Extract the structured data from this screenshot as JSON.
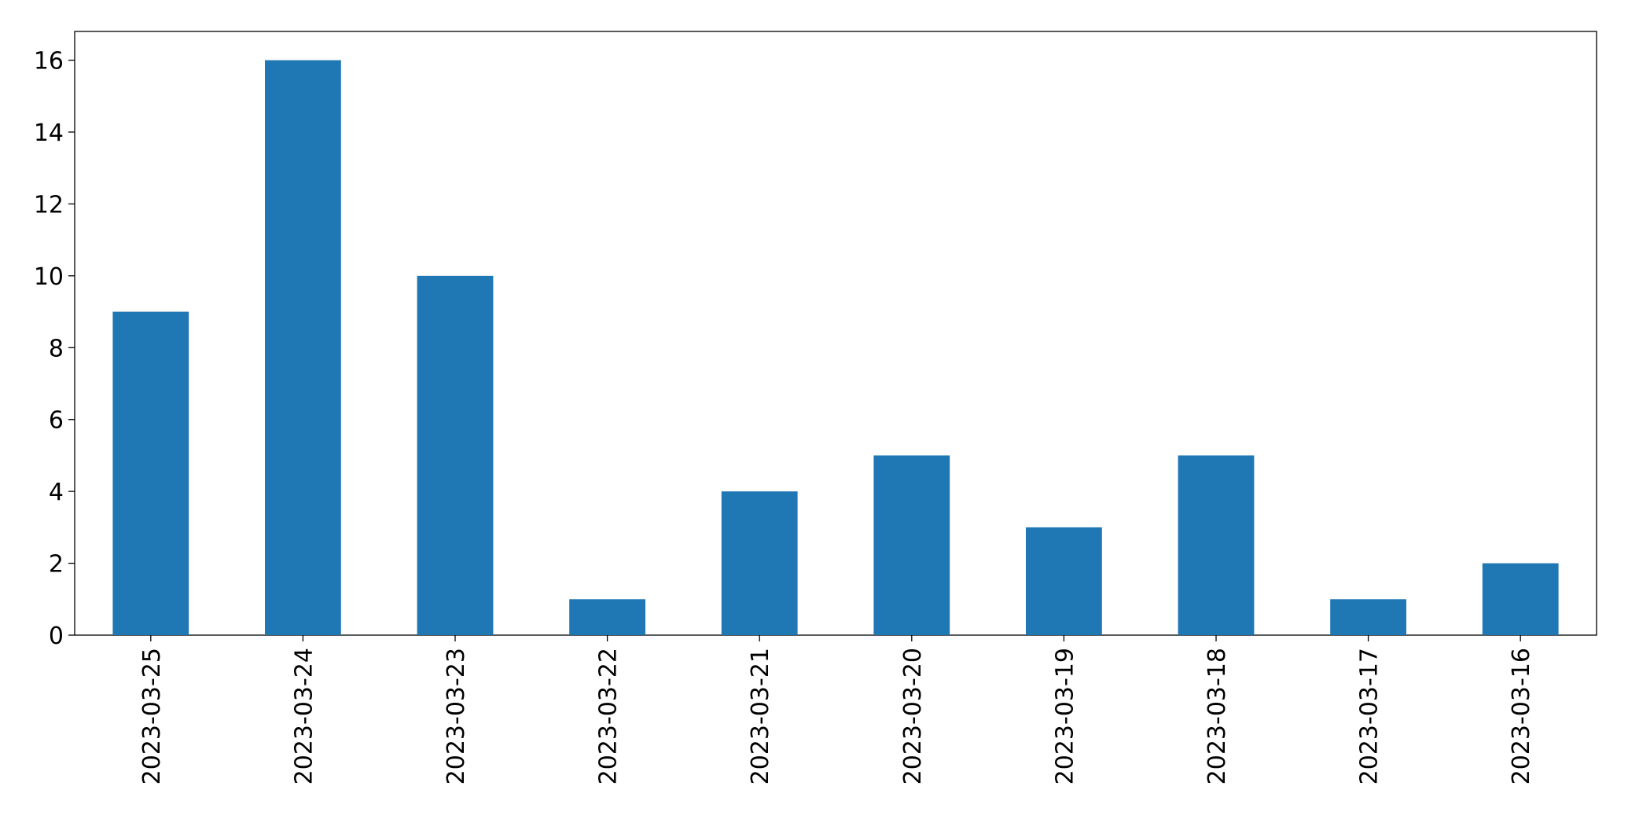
{
  "chart_data": {
    "type": "bar",
    "categories": [
      "2023-03-25",
      "2023-03-24",
      "2023-03-23",
      "2023-03-22",
      "2023-03-21",
      "2023-03-20",
      "2023-03-19",
      "2023-03-18",
      "2023-03-17",
      "2023-03-16"
    ],
    "values": [
      9,
      16,
      10,
      1,
      4,
      5,
      3,
      5,
      1,
      2
    ],
    "color": "#1f77b4",
    "ylim": [
      0,
      16.8
    ],
    "yticks": [
      0,
      2,
      4,
      6,
      8,
      10,
      12,
      14,
      16
    ],
    "grid": false
  }
}
